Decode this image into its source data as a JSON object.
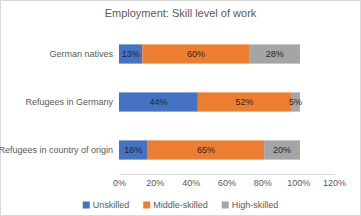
{
  "chart_data": {
    "type": "bar",
    "title": "Employment: Skill level of work",
    "orientation": "horizontal",
    "stacked": true,
    "data_labels": true,
    "grid": false,
    "legend": "bottom",
    "categories": [
      "German natives",
      "Refugees in Germany",
      "Refugees in country of origin"
    ],
    "series": [
      {
        "name": "Unskilled",
        "color": "#4472c4",
        "values": [
          13,
          44,
          16
        ],
        "value_labels": [
          "13%",
          "44%",
          "16%"
        ]
      },
      {
        "name": "Middle-skilled",
        "color": "#ed7d31",
        "values": [
          60,
          52,
          65
        ],
        "value_labels": [
          "60%",
          "52%",
          "65%"
        ]
      },
      {
        "name": "High-skilled",
        "color": "#a5a5a5",
        "values": [
          28,
          5,
          20
        ],
        "value_labels": [
          "28%",
          "5%",
          "20%"
        ]
      }
    ],
    "xlim": [
      0,
      120
    ],
    "xticks": [
      {
        "value": 0,
        "label": "0%"
      },
      {
        "value": 20,
        "label": "20%"
      },
      {
        "value": 40,
        "label": "40%"
      },
      {
        "value": 60,
        "label": "60%"
      },
      {
        "value": 80,
        "label": "80%"
      },
      {
        "value": 100,
        "label": "100%"
      },
      {
        "value": 120,
        "label": "120%"
      }
    ]
  }
}
